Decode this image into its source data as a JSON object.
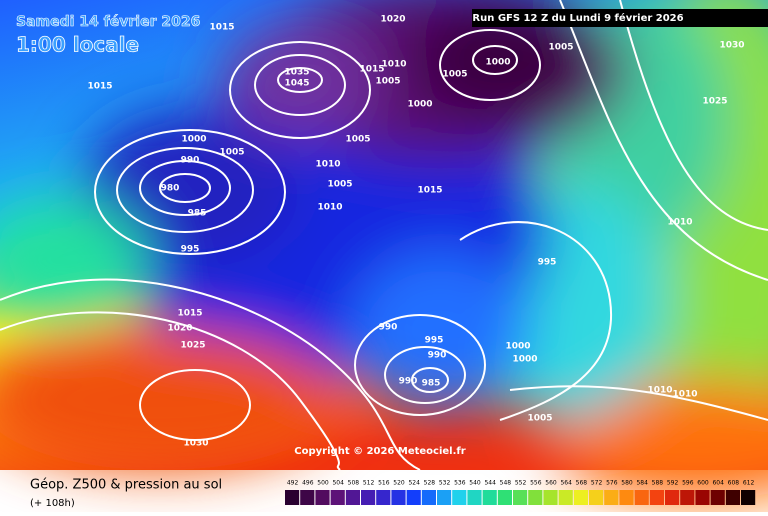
{
  "header": {
    "date": "Samedi 14 février 2026",
    "time": "1:00 locale",
    "run": "Run GFS 12 Z du Lundi 9 février 2026"
  },
  "map": {
    "copyright": "Copyright © 2026 Meteociel.fr",
    "isobar_labels": [
      "1015",
      "1000",
      "990",
      "980",
      "985",
      "995",
      "1005",
      "1010",
      "1005",
      "1010",
      "1005",
      "1015",
      "1015",
      "1010",
      "1005",
      "1000",
      "1005",
      "1000",
      "1005",
      "1020",
      "1015",
      "1035",
      "1045",
      "1030",
      "1025",
      "1010",
      "995",
      "990",
      "995",
      "990",
      "990",
      "985",
      "1000",
      "1000",
      "1010",
      "1010",
      "1005",
      "1015",
      "1020",
      "1025",
      "1030"
    ]
  },
  "footer": {
    "title": "Géop. Z500 & pression au sol",
    "lead": "(+ 108h)",
    "scale": [
      492,
      496,
      500,
      504,
      508,
      512,
      516,
      520,
      524,
      528,
      532,
      536,
      540,
      544,
      548,
      552,
      556,
      560,
      564,
      568,
      572,
      576,
      580,
      584,
      588,
      592,
      596,
      600,
      604,
      608,
      612
    ]
  }
}
